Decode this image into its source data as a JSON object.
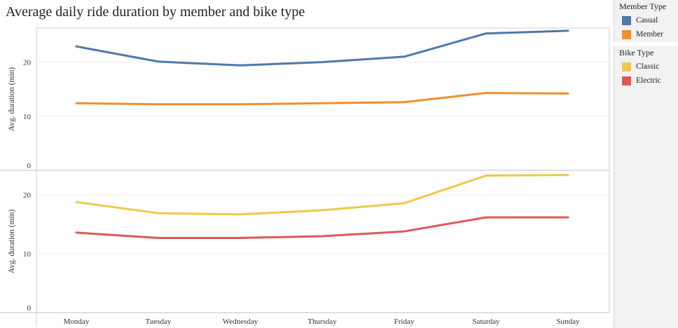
{
  "title": "Average daily ride duration by member and bike type",
  "legends": [
    {
      "title": "Member Type",
      "items": [
        {
          "label": "Casual",
          "color": "#4e79a7"
        },
        {
          "label": "Member",
          "color": "#f28e2b"
        }
      ]
    },
    {
      "title": "Bike Type",
      "items": [
        {
          "label": "Classic",
          "color": "#edc948"
        },
        {
          "label": "Electric",
          "color": "#e15759"
        }
      ]
    }
  ],
  "chart_data": [
    {
      "type": "line",
      "categories": [
        "Monday",
        "Tuesday",
        "Wednesday",
        "Thursday",
        "Friday",
        "Saturday",
        "Sunday"
      ],
      "ylabel": "Avg. duration (min)",
      "ylim": [
        0,
        26.3
      ],
      "yticks": [
        0,
        10,
        20
      ],
      "grid": true,
      "series": [
        {
          "name": "Casual",
          "color": "#4e79a7",
          "values": [
            22.9,
            20.1,
            19.4,
            20.0,
            21.0,
            25.3,
            25.8
          ]
        },
        {
          "name": "Member",
          "color": "#f28e2b",
          "values": [
            12.4,
            12.2,
            12.2,
            12.4,
            12.6,
            14.3,
            14.2
          ]
        }
      ]
    },
    {
      "type": "line",
      "categories": [
        "Monday",
        "Tuesday",
        "Wednesday",
        "Thursday",
        "Friday",
        "Saturday",
        "Sunday"
      ],
      "ylabel": "Avg. duration (min)",
      "ylim": [
        0,
        24.2
      ],
      "yticks": [
        0,
        10,
        20
      ],
      "grid": true,
      "series": [
        {
          "name": "Classic",
          "color": "#edc948",
          "values": [
            18.8,
            16.9,
            16.7,
            17.4,
            18.6,
            23.3,
            23.4
          ]
        },
        {
          "name": "Electric",
          "color": "#e15759",
          "values": [
            13.6,
            12.7,
            12.7,
            13.0,
            13.8,
            16.2,
            16.2
          ]
        }
      ]
    }
  ]
}
